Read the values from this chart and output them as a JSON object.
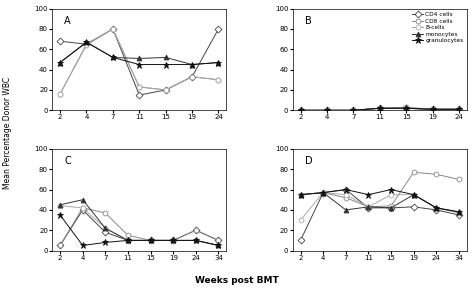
{
  "weeks_AB": [
    2,
    4,
    7,
    11,
    15,
    19,
    24
  ],
  "weeks_CD": [
    2,
    4,
    7,
    11,
    15,
    19,
    24,
    34
  ],
  "panel_A": {
    "CD4": [
      68,
      65,
      80,
      15,
      20,
      33,
      80
    ],
    "CD8": [
      16,
      65,
      80,
      23,
      20,
      33,
      30
    ],
    "B_cells": [
      16,
      64,
      80,
      23,
      20,
      33,
      30
    ],
    "monocytes": [
      47,
      67,
      52,
      51,
      52,
      45,
      47
    ],
    "granulocytes": [
      47,
      67,
      52,
      45,
      45,
      45,
      47
    ]
  },
  "panel_B": {
    "CD4": [
      0,
      0,
      0,
      2,
      2,
      1,
      1
    ],
    "CD8": [
      0,
      0,
      0,
      2,
      3,
      1,
      1
    ],
    "B_cells": [
      0,
      0,
      0,
      2,
      2,
      1,
      1
    ],
    "monocytes": [
      0,
      0,
      0,
      2,
      2,
      1,
      1
    ],
    "granulocytes": [
      0,
      0,
      0,
      2,
      2,
      1,
      1
    ]
  },
  "panel_C": {
    "CD4": [
      5,
      40,
      18,
      10,
      10,
      10,
      20,
      10
    ],
    "CD8": [
      5,
      42,
      37,
      15,
      10,
      10,
      20,
      10
    ],
    "B_cells": [
      44,
      42,
      22,
      10,
      10,
      10,
      10,
      5
    ],
    "monocytes": [
      45,
      50,
      22,
      10,
      10,
      10,
      10,
      5
    ],
    "granulocytes": [
      35,
      5,
      8,
      10,
      10,
      10,
      10,
      5
    ]
  },
  "panel_D": {
    "CD4": [
      10,
      57,
      60,
      42,
      42,
      43,
      40,
      35
    ],
    "CD8": [
      55,
      57,
      52,
      43,
      44,
      77,
      75,
      70
    ],
    "B_cells": [
      30,
      57,
      55,
      43,
      55,
      55,
      42,
      37
    ],
    "monocytes": [
      55,
      57,
      40,
      43,
      42,
      55,
      42,
      38
    ],
    "granulocytes": [
      55,
      57,
      60,
      55,
      60,
      55,
      42,
      38
    ]
  },
  "legend_labels": [
    "CD4 cells",
    "CD8 cells",
    "B-cells",
    "monocytes",
    "granulocytes"
  ],
  "cell_types": [
    "CD4",
    "CD8",
    "B_cells",
    "monocytes",
    "granulocytes"
  ],
  "markers": [
    "D",
    "o",
    "o",
    "^",
    "*"
  ],
  "markerfilled": [
    false,
    false,
    false,
    true,
    true
  ],
  "colors": [
    "#444444",
    "#888888",
    "#aaaaaa",
    "#333333",
    "#111111"
  ],
  "ylabel": "Mean Percentage Donor WBC",
  "xlabel": "Weeks post BMT",
  "background_color": "#ffffff",
  "panel_labels": [
    "A",
    "B",
    "C",
    "D"
  ]
}
